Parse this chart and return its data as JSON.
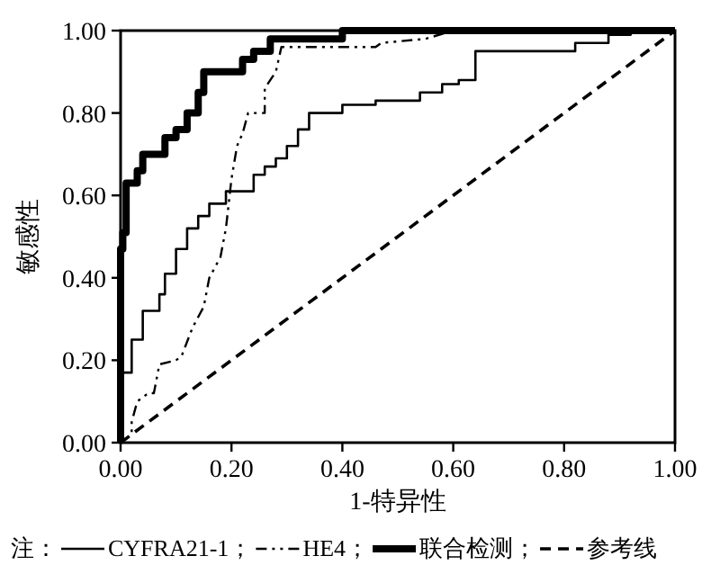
{
  "chart_data": {
    "type": "line",
    "xlabel": "1-特异性",
    "ylabel": "敏感性",
    "legend_title": "注：",
    "legend": "bottom",
    "grid": false,
    "xlim": [
      0,
      1
    ],
    "ylim": [
      0,
      1
    ],
    "xticks": [
      {
        "value": 0,
        "label": "0.00"
      },
      {
        "value": 0.2,
        "label": "0.20"
      },
      {
        "value": 0.4,
        "label": "0.40"
      },
      {
        "value": 0.6,
        "label": "0.60"
      },
      {
        "value": 0.8,
        "label": "0.80"
      },
      {
        "value": 1,
        "label": "1.00"
      }
    ],
    "yticks": [
      {
        "value": 0,
        "label": "0.00"
      },
      {
        "value": 0.2,
        "label": "0.20"
      },
      {
        "value": 0.4,
        "label": "0.40"
      },
      {
        "value": 0.6,
        "label": "0.60"
      },
      {
        "value": 0.8,
        "label": "0.80"
      },
      {
        "value": 1,
        "label": "1.00"
      }
    ],
    "series": [
      {
        "name": "CYFRA21-1；",
        "color": "#000000",
        "line_style": "solid",
        "x": [
          0,
          0,
          0.02,
          0.02,
          0.04,
          0.04,
          0.07,
          0.07,
          0.08,
          0.08,
          0.1,
          0.1,
          0.12,
          0.12,
          0.14,
          0.14,
          0.16,
          0.16,
          0.19,
          0.19,
          0.24,
          0.24,
          0.26,
          0.26,
          0.28,
          0.28,
          0.3,
          0.3,
          0.32,
          0.32,
          0.34,
          0.34,
          0.4,
          0.4,
          0.46,
          0.46,
          0.54,
          0.54,
          0.58,
          0.58,
          0.61,
          0.61,
          0.64,
          0.64,
          0.82,
          0.82,
          0.88,
          0.88,
          0.92,
          0.92,
          1
        ],
        "values": [
          0,
          0.17,
          0.17,
          0.25,
          0.25,
          0.32,
          0.32,
          0.36,
          0.36,
          0.41,
          0.41,
          0.47,
          0.47,
          0.52,
          0.52,
          0.55,
          0.55,
          0.58,
          0.58,
          0.61,
          0.61,
          0.65,
          0.65,
          0.67,
          0.67,
          0.69,
          0.69,
          0.72,
          0.72,
          0.76,
          0.76,
          0.8,
          0.8,
          0.82,
          0.82,
          0.83,
          0.83,
          0.85,
          0.85,
          0.87,
          0.87,
          0.88,
          0.88,
          0.95,
          0.95,
          0.97,
          0.97,
          0.99,
          0.99,
          1,
          1
        ]
      },
      {
        "name": "HE4；",
        "color": "#000000",
        "line_style": "dashdot",
        "x": [
          0,
          0.02,
          0.02,
          0.03,
          0.05,
          0.06,
          0.07,
          0.1,
          0.11,
          0.13,
          0.15,
          0.16,
          0.18,
          0.19,
          0.2,
          0.21,
          0.22,
          0.23,
          0.26,
          0.26,
          0.28,
          0.29,
          0.46,
          0.47,
          0.55,
          0.6,
          1
        ],
        "values": [
          0,
          0.02,
          0.05,
          0.1,
          0.12,
          0.12,
          0.19,
          0.2,
          0.21,
          0.28,
          0.33,
          0.4,
          0.45,
          0.52,
          0.64,
          0.72,
          0.75,
          0.8,
          0.8,
          0.86,
          0.9,
          0.96,
          0.96,
          0.97,
          0.98,
          1,
          1
        ]
      },
      {
        "name": "联合检测；",
        "color": "#000000",
        "line_style": "solid",
        "x": [
          0,
          0,
          0.004,
          0.004,
          0.01,
          0.01,
          0.03,
          0.03,
          0.04,
          0.04,
          0.08,
          0.08,
          0.1,
          0.1,
          0.12,
          0.12,
          0.14,
          0.14,
          0.15,
          0.15,
          0.22,
          0.22,
          0.24,
          0.24,
          0.27,
          0.27,
          0.4,
          0.4,
          1
        ],
        "values": [
          0,
          0.47,
          0.47,
          0.51,
          0.51,
          0.63,
          0.63,
          0.66,
          0.66,
          0.7,
          0.7,
          0.74,
          0.74,
          0.76,
          0.76,
          0.8,
          0.8,
          0.85,
          0.85,
          0.9,
          0.9,
          0.93,
          0.93,
          0.95,
          0.95,
          0.98,
          0.98,
          1,
          1
        ]
      },
      {
        "name": "参考线",
        "color": "#000000",
        "line_style": "dashed",
        "x": [
          0,
          1
        ],
        "values": [
          0,
          1
        ]
      }
    ]
  }
}
